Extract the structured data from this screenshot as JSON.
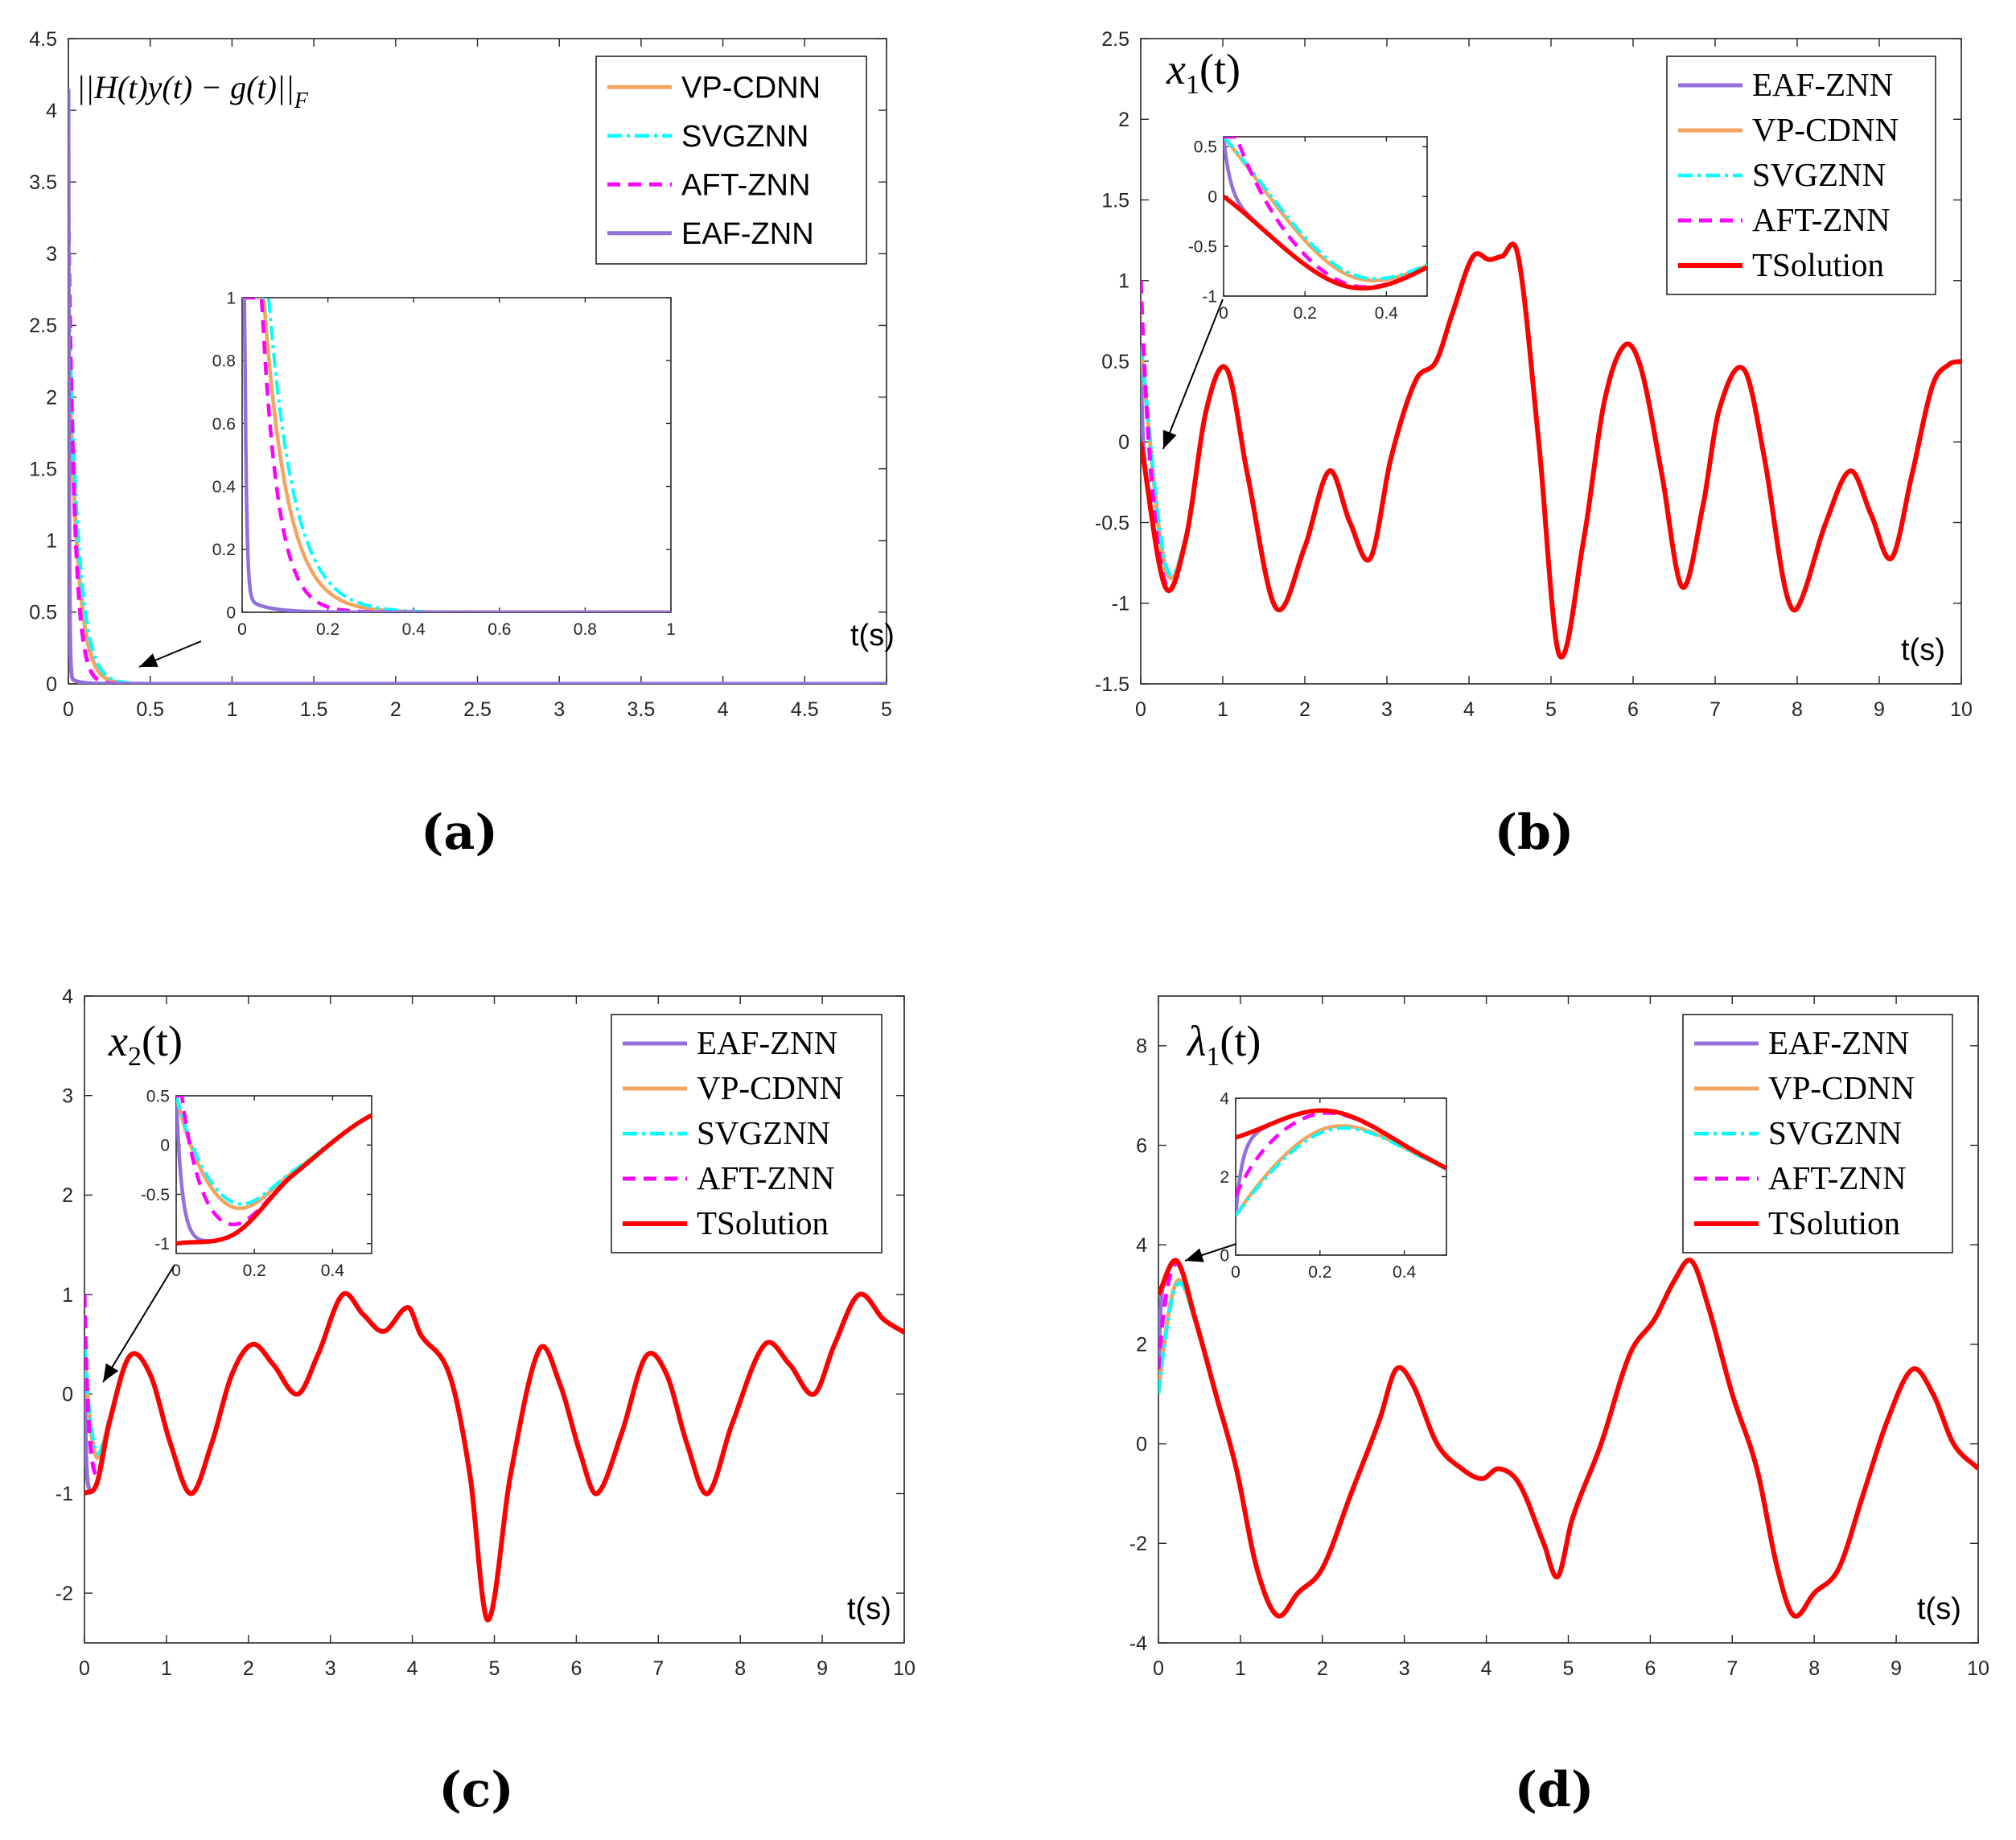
{
  "figure_captions": [
    "(a)",
    "(b)",
    "(c)",
    "(d)"
  ],
  "colors": {
    "EAF-ZNN": "#9370DB",
    "VP-CDNN": "#F4A460",
    "SVGZNN": "#00FFFF",
    "AFT-ZNN": "#FF00FF",
    "TSolution": "#FF0000"
  },
  "chart_data": [
    {
      "id": "a",
      "type": "line",
      "caption": "(a)",
      "annotation": "||H(t)y(t) − g(t)||",
      "annotation_sub": "F",
      "xlabel": "t(s)",
      "xlim": [
        0,
        5
      ],
      "ylim": [
        0,
        4.5
      ],
      "xticks": [
        "0",
        "0.5",
        "1",
        "1.5",
        "2",
        "2.5",
        "3",
        "3.5",
        "4",
        "4.5",
        "5"
      ],
      "yticks": [
        "0",
        "0.5",
        "1",
        "1.5",
        "2",
        "2.5",
        "3",
        "3.5",
        "4",
        "4.5"
      ],
      "legend": [
        "VP-CDNN",
        "SVGZNN",
        "AFT-ZNN",
        "EAF-ZNN"
      ],
      "legend_position": "top-right",
      "series": [
        {
          "name": "VP-CDNN",
          "kind": "exp",
          "y0": 2.5,
          "tau": 0.055
        },
        {
          "name": "SVGZNN",
          "kind": "exp",
          "y0": 2.8,
          "tau": 0.06
        },
        {
          "name": "AFT-ZNN",
          "kind": "exp",
          "y0": 3.3,
          "tau": 0.038
        },
        {
          "name": "EAF-ZNN",
          "kind": "exp",
          "y0": 4.1,
          "tau": 0.004,
          "tail": 0.05,
          "tailtau": 0.05
        }
      ],
      "inset": {
        "xlim": [
          0,
          1
        ],
        "ylim": [
          0,
          1
        ],
        "xticks": [
          "0",
          "0.2",
          "0.4",
          "0.6",
          "0.8",
          "1"
        ],
        "yticks": [
          "0",
          "0.2",
          "0.4",
          "0.6",
          "0.8",
          "1"
        ]
      }
    },
    {
      "id": "b",
      "type": "line",
      "caption": "(b)",
      "annotation": "x",
      "annotation_sub": "1",
      "annotation_tail": "(t)",
      "xlabel": "t(s)",
      "xlim": [
        0,
        10
      ],
      "ylim": [
        -1.5,
        2.5
      ],
      "xticks": [
        "0",
        "1",
        "2",
        "3",
        "4",
        "5",
        "6",
        "7",
        "8",
        "9",
        "10"
      ],
      "yticks": [
        "-1.5",
        "-1",
        "-0.5",
        "0",
        "0.5",
        "1",
        "1.5",
        "2",
        "2.5"
      ],
      "legend": [
        "EAF-ZNN",
        "VP-CDNN",
        "SVGZNN",
        "AFT-ZNN",
        "TSolution"
      ],
      "legend_position": "top-right",
      "series": [
        {
          "name": "TSolution",
          "kind": "points",
          "points": [
            [
              0,
              0
            ],
            [
              0.3,
              -0.9
            ],
            [
              0.55,
              -0.6
            ],
            [
              0.8,
              0.2
            ],
            [
              1.05,
              0.45
            ],
            [
              1.3,
              -0.2
            ],
            [
              1.65,
              -1.03
            ],
            [
              2.0,
              -0.65
            ],
            [
              2.3,
              -0.18
            ],
            [
              2.55,
              -0.5
            ],
            [
              2.8,
              -0.72
            ],
            [
              3.05,
              -0.1
            ],
            [
              3.35,
              0.38
            ],
            [
              3.6,
              0.5
            ],
            [
              3.8,
              0.8
            ],
            [
              4.05,
              1.15
            ],
            [
              4.25,
              1.13
            ],
            [
              4.4,
              1.15
            ],
            [
              4.6,
              1.15
            ],
            [
              4.85,
              0.0
            ],
            [
              5.1,
              -1.32
            ],
            [
              5.4,
              -0.6
            ],
            [
              5.65,
              0.25
            ],
            [
              5.9,
              0.6
            ],
            [
              6.1,
              0.45
            ],
            [
              6.35,
              -0.2
            ],
            [
              6.6,
              -0.9
            ],
            [
              6.85,
              -0.4
            ],
            [
              7.05,
              0.2
            ],
            [
              7.35,
              0.45
            ],
            [
              7.6,
              -0.1
            ],
            [
              7.85,
              -0.9
            ],
            [
              8.0,
              -1.03
            ],
            [
              8.35,
              -0.5
            ],
            [
              8.65,
              -0.18
            ],
            [
              8.9,
              -0.45
            ],
            [
              9.15,
              -0.72
            ],
            [
              9.4,
              -0.2
            ],
            [
              9.65,
              0.35
            ],
            [
              9.85,
              0.48
            ],
            [
              10,
              0.5
            ]
          ]
        },
        {
          "name": "EAF-ZNN",
          "kind": "merge",
          "y0": 0.6,
          "k": 0.015
        },
        {
          "name": "VP-CDNN",
          "kind": "merge",
          "y0": 0.6,
          "k": 0.12
        },
        {
          "name": "SVGZNN",
          "kind": "merge",
          "y0": 0.6,
          "k": 0.13
        },
        {
          "name": "AFT-ZNN",
          "kind": "merge",
          "y0": 1.0,
          "k": 0.07
        }
      ],
      "inset": {
        "xlim": [
          0,
          0.5
        ],
        "ylim": [
          -1,
          0.6
        ],
        "xticks": [
          "0",
          "0.2",
          "0.4"
        ],
        "yticks": [
          "-1",
          "-0.5",
          "0",
          "0.5"
        ]
      }
    },
    {
      "id": "c",
      "type": "line",
      "caption": "(c)",
      "annotation": "x",
      "annotation_sub": "2",
      "annotation_tail": "(t)",
      "xlabel": "t(s)",
      "xlim": [
        0,
        10
      ],
      "ylim": [
        -2.5,
        4
      ],
      "xticks": [
        "0",
        "1",
        "2",
        "3",
        "4",
        "5",
        "6",
        "7",
        "8",
        "9",
        "10"
      ],
      "yticks": [
        "-2",
        "-1",
        "0",
        "1",
        "2",
        "3",
        "4"
      ],
      "legend": [
        "EAF-ZNN",
        "VP-CDNN",
        "SVGZNN",
        "AFT-ZNN",
        "TSolution"
      ],
      "legend_position": "top-right",
      "series": [
        {
          "name": "TSolution",
          "kind": "points",
          "points": [
            [
              0,
              -1.0
            ],
            [
              0.15,
              -0.9
            ],
            [
              0.3,
              -0.3
            ],
            [
              0.55,
              0.38
            ],
            [
              0.8,
              0.2
            ],
            [
              1.05,
              -0.5
            ],
            [
              1.3,
              -1.0
            ],
            [
              1.55,
              -0.5
            ],
            [
              1.8,
              0.2
            ],
            [
              2.05,
              0.5
            ],
            [
              2.3,
              0.3
            ],
            [
              2.6,
              0.0
            ],
            [
              2.85,
              0.4
            ],
            [
              3.15,
              1.0
            ],
            [
              3.4,
              0.8
            ],
            [
              3.65,
              0.63
            ],
            [
              3.95,
              0.87
            ],
            [
              4.1,
              0.6
            ],
            [
              4.45,
              0.2
            ],
            [
              4.7,
              -0.8
            ],
            [
              4.92,
              -2.27
            ],
            [
              5.2,
              -0.8
            ],
            [
              5.55,
              0.45
            ],
            [
              5.8,
              0.1
            ],
            [
              6.05,
              -0.6
            ],
            [
              6.25,
              -1.0
            ],
            [
              6.55,
              -0.4
            ],
            [
              6.85,
              0.38
            ],
            [
              7.1,
              0.2
            ],
            [
              7.35,
              -0.5
            ],
            [
              7.6,
              -1.0
            ],
            [
              7.9,
              -0.3
            ],
            [
              8.3,
              0.5
            ],
            [
              8.6,
              0.3
            ],
            [
              8.9,
              0.0
            ],
            [
              9.15,
              0.5
            ],
            [
              9.45,
              1.0
            ],
            [
              9.75,
              0.75
            ],
            [
              10,
              0.62
            ]
          ]
        },
        {
          "name": "EAF-ZNN",
          "kind": "merge",
          "y0": 0.5,
          "k": 0.015
        },
        {
          "name": "VP-CDNN",
          "kind": "merge",
          "y0": 0.5,
          "k": 0.09
        },
        {
          "name": "SVGZNN",
          "kind": "merge",
          "y0": 0.5,
          "k": 0.1
        },
        {
          "name": "AFT-ZNN",
          "kind": "merge",
          "y0": 1.0,
          "k": 0.05
        }
      ],
      "inset": {
        "xlim": [
          0,
          0.5
        ],
        "ylim": [
          -1.1,
          0.5
        ],
        "xticks": [
          "0",
          "0.2",
          "0.4"
        ],
        "yticks": [
          "-1",
          "-0.5",
          "0",
          "0.5"
        ]
      }
    },
    {
      "id": "d",
      "type": "line",
      "caption": "(d)",
      "annotation": "λ",
      "annotation_sub": "1",
      "annotation_tail": "(t)",
      "xlabel": "t(s)",
      "xlim": [
        0,
        10
      ],
      "ylim": [
        -4,
        9
      ],
      "xticks": [
        "0",
        "1",
        "2",
        "3",
        "4",
        "5",
        "6",
        "7",
        "8",
        "9",
        "10"
      ],
      "yticks": [
        "-4",
        "-2",
        "0",
        "2",
        "4",
        "6",
        "8"
      ],
      "legend": [
        "EAF-ZNN",
        "VP-CDNN",
        "SVGZNN",
        "AFT-ZNN",
        "TSolution"
      ],
      "legend_position": "top-right",
      "series": [
        {
          "name": "TSolution",
          "kind": "points",
          "points": [
            [
              0,
              3.0
            ],
            [
              0.22,
              3.68
            ],
            [
              0.45,
              2.5
            ],
            [
              0.7,
              1.0
            ],
            [
              0.95,
              -0.5
            ],
            [
              1.2,
              -2.5
            ],
            [
              1.45,
              -3.45
            ],
            [
              1.7,
              -3.0
            ],
            [
              2.0,
              -2.5
            ],
            [
              2.35,
              -1.0
            ],
            [
              2.7,
              0.5
            ],
            [
              2.9,
              1.5
            ],
            [
              3.1,
              1.2
            ],
            [
              3.4,
              0.0
            ],
            [
              3.7,
              -0.5
            ],
            [
              3.95,
              -0.7
            ],
            [
              4.15,
              -0.5
            ],
            [
              4.4,
              -0.8
            ],
            [
              4.7,
              -2.0
            ],
            [
              4.87,
              -2.67
            ],
            [
              5.05,
              -1.5
            ],
            [
              5.4,
              0.0
            ],
            [
              5.75,
              1.8
            ],
            [
              6.05,
              2.5
            ],
            [
              6.3,
              3.3
            ],
            [
              6.5,
              3.68
            ],
            [
              6.7,
              2.8
            ],
            [
              7.0,
              1.0
            ],
            [
              7.3,
              -0.5
            ],
            [
              7.55,
              -2.5
            ],
            [
              7.75,
              -3.45
            ],
            [
              8.0,
              -3.0
            ],
            [
              8.3,
              -2.5
            ],
            [
              8.6,
              -1.0
            ],
            [
              8.9,
              0.5
            ],
            [
              9.2,
              1.5
            ],
            [
              9.45,
              1.0
            ],
            [
              9.7,
              0.0
            ],
            [
              10,
              -0.5
            ]
          ]
        },
        {
          "name": "EAF-ZNN",
          "kind": "merge",
          "y0": 1.0,
          "k": 0.015
        },
        {
          "name": "VP-CDNN",
          "kind": "merge",
          "y0": 1.0,
          "k": 0.12
        },
        {
          "name": "SVGZNN",
          "kind": "merge",
          "y0": 1.0,
          "k": 0.13
        },
        {
          "name": "AFT-ZNN",
          "kind": "merge",
          "y0": 1.5,
          "k": 0.06
        }
      ],
      "inset": {
        "xlim": [
          0,
          0.5
        ],
        "ylim": [
          0,
          4
        ],
        "xticks": [
          "0",
          "0.2",
          "0.4"
        ],
        "yticks": [
          "0",
          "2",
          "4"
        ]
      }
    }
  ]
}
